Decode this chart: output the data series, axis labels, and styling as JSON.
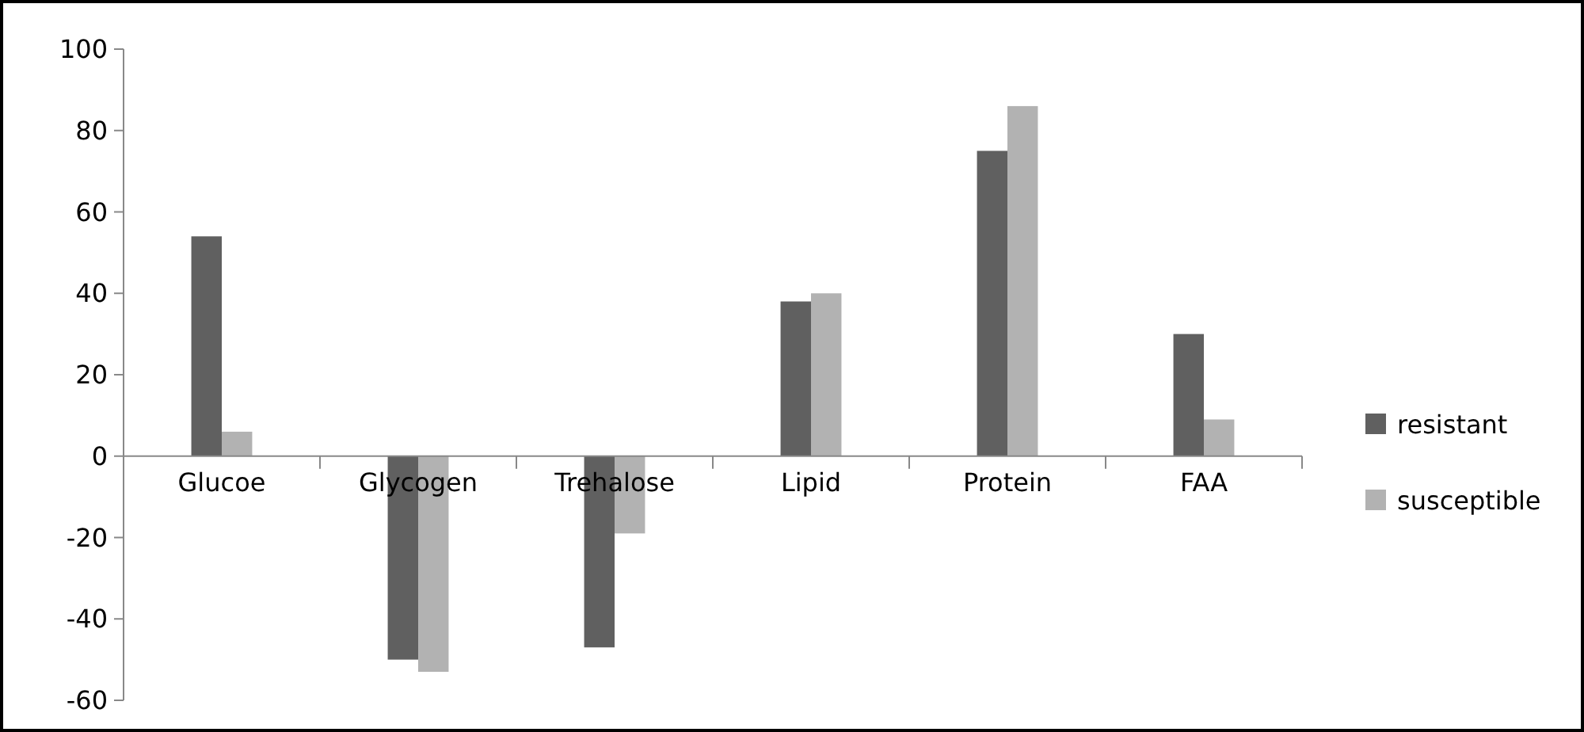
{
  "chart_data": {
    "type": "bar",
    "categories": [
      "Glucoe",
      "Glycogen",
      "Trehalose",
      "Lipid",
      "Protein",
      "FAA"
    ],
    "series": [
      {
        "name": "resistant",
        "color": "#606060",
        "values": [
          54,
          -50,
          -47,
          38,
          75,
          30
        ]
      },
      {
        "name": "susceptible",
        "color": "#b2b2b2",
        "values": [
          6,
          -53,
          -19,
          40,
          86,
          9
        ]
      }
    ],
    "ylim": [
      -60,
      100
    ],
    "yticks": [
      -60,
      -40,
      -20,
      0,
      20,
      40,
      60,
      80,
      100
    ],
    "grid": false,
    "legend": "right"
  }
}
